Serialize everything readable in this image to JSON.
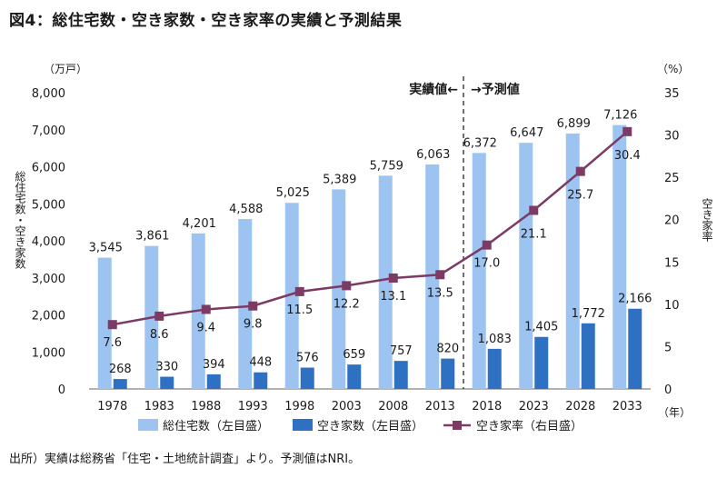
{
  "title": "図4：総住宅数・空き家数・空き家率の実績と予測結果",
  "source": "出所）実績は総務省「住宅・土地統計調査」より。予測値はNRI。",
  "chart_data": {
    "type": "bar",
    "categories": [
      "1978",
      "1983",
      "1988",
      "1993",
      "1998",
      "2003",
      "2008",
      "2013",
      "2018",
      "2023",
      "2028",
      "2033"
    ],
    "series": [
      {
        "name": "総住宅数（左目盛）",
        "kind": "bar",
        "axis": "left",
        "color": "#9DC3F0",
        "values": [
          3545,
          3861,
          4201,
          4588,
          5025,
          5389,
          5759,
          6063,
          6372,
          6647,
          6899,
          7126
        ],
        "labels": [
          "3,545",
          "3,861",
          "4,201",
          "4,588",
          "5,025",
          "5,389",
          "5,759",
          "6,063",
          "6,372",
          "6,647",
          "6,899",
          "7,126"
        ]
      },
      {
        "name": "空き家数（左目盛）",
        "kind": "bar",
        "axis": "left",
        "color": "#2E70C2",
        "values": [
          268,
          330,
          394,
          448,
          576,
          659,
          757,
          820,
          1083,
          1405,
          1772,
          2166
        ],
        "labels": [
          "268",
          "330",
          "394",
          "448",
          "576",
          "659",
          "757",
          "820",
          "1,083",
          "1,405",
          "1,772",
          "2,166"
        ]
      },
      {
        "name": "空き家率（右目盛）",
        "kind": "line",
        "axis": "right",
        "color": "#7B3B64",
        "values": [
          7.6,
          8.6,
          9.4,
          9.8,
          11.5,
          12.2,
          13.1,
          13.5,
          17.0,
          21.1,
          25.7,
          30.4
        ],
        "labels": [
          "7.6",
          "8.6",
          "9.4",
          "9.8",
          "11.5",
          "12.2",
          "13.1",
          "13.5",
          "17.0",
          "21.1",
          "25.7",
          "30.4"
        ]
      }
    ],
    "left_axis": {
      "unit": "（万戸）",
      "label": "総住宅数・空き家数",
      "ylim": [
        0,
        8000
      ],
      "ticks": [
        "0",
        "1,000",
        "2,000",
        "3,000",
        "4,000",
        "5,000",
        "6,000",
        "7,000",
        "8,000"
      ]
    },
    "right_axis": {
      "unit": "（%）",
      "label": "空き家率",
      "ylim": [
        0,
        35
      ],
      "ticks": [
        "0",
        "5",
        "10",
        "15",
        "20",
        "25",
        "30",
        "35"
      ]
    },
    "x_unit": "（年）",
    "annotations": {
      "actual": "実績値←",
      "forecast": "→予測値"
    },
    "divider_after_category": "2013",
    "legend_position": "bottom"
  }
}
